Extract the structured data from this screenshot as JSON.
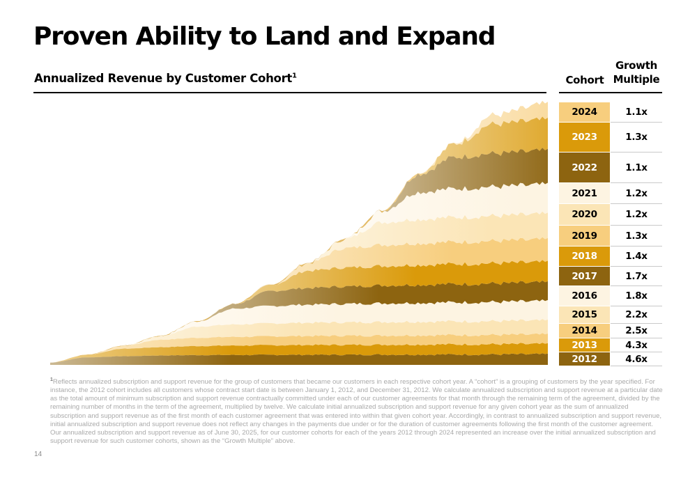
{
  "slide": {
    "title": "Proven Ability to Land and Expand",
    "subtitle": "Annualized Revenue by Customer Cohort",
    "subtitle_footnote_marker": "1",
    "page_number": "14"
  },
  "table": {
    "header_cohort": "Cohort",
    "header_growth_line1": "Growth",
    "header_growth_line2": "Multiple",
    "rows": [
      {
        "cohort": "2024",
        "multiple": "1.1x",
        "color": "#F7CE7E",
        "text": "#000000"
      },
      {
        "cohort": "2023",
        "multiple": "1.3x",
        "color": "#DA9A0A",
        "text": "#ffffff"
      },
      {
        "cohort": "2022",
        "multiple": "1.1x",
        "color": "#8D6410",
        "text": "#ffffff"
      },
      {
        "cohort": "2021",
        "multiple": "1.2x",
        "color": "#FDF4E2",
        "text": "#000000"
      },
      {
        "cohort": "2020",
        "multiple": "1.2x",
        "color": "#FBE5B6",
        "text": "#000000"
      },
      {
        "cohort": "2019",
        "multiple": "1.3x",
        "color": "#F7CE7E",
        "text": "#000000"
      },
      {
        "cohort": "2018",
        "multiple": "1.4x",
        "color": "#DA9A0A",
        "text": "#ffffff"
      },
      {
        "cohort": "2017",
        "multiple": "1.7x",
        "color": "#8D6410",
        "text": "#ffffff"
      },
      {
        "cohort": "2016",
        "multiple": "1.8x",
        "color": "#FDF4E2",
        "text": "#000000"
      },
      {
        "cohort": "2015",
        "multiple": "2.2x",
        "color": "#FBE5B6",
        "text": "#000000"
      },
      {
        "cohort": "2014",
        "multiple": "2.5x",
        "color": "#F7CE7E",
        "text": "#000000"
      },
      {
        "cohort": "2013",
        "multiple": "4.3x",
        "color": "#DA9A0A",
        "text": "#ffffff"
      },
      {
        "cohort": "2012",
        "multiple": "4.6x",
        "color": "#8D6410",
        "text": "#ffffff"
      }
    ]
  },
  "chart_data": {
    "type": "area",
    "stacked": true,
    "title": "Annualized Revenue by Customer Cohort",
    "xlabel": "",
    "ylabel": "",
    "axes_visible": false,
    "grid": false,
    "legend": "table-right",
    "x": [
      2012,
      2013,
      2014,
      2015,
      2016,
      2017,
      2018,
      2019,
      2020,
      2021,
      2022,
      2023,
      2024,
      2025.5
    ],
    "series": [
      {
        "name": "2012",
        "color": "#8D6410",
        "values": [
          0.3,
          1.0,
          1.15,
          1.25,
          1.3,
          1.32,
          1.33,
          1.34,
          1.35,
          1.36,
          1.37,
          1.38,
          1.39,
          1.4
        ]
      },
      {
        "name": "2013",
        "color": "#DA9A0A",
        "values": [
          0,
          0.35,
          1.0,
          1.1,
          1.2,
          1.25,
          1.28,
          1.3,
          1.31,
          1.32,
          1.33,
          1.34,
          1.35,
          1.36
        ]
      },
      {
        "name": "2014",
        "color": "#F7CE7E",
        "values": [
          0,
          0,
          0.4,
          1.0,
          1.1,
          1.15,
          1.18,
          1.2,
          1.21,
          1.22,
          1.23,
          1.24,
          1.24,
          1.25
        ]
      },
      {
        "name": "2015",
        "color": "#FBE5B6",
        "values": [
          0,
          0,
          0,
          0.5,
          1.5,
          1.65,
          1.72,
          1.76,
          1.78,
          1.8,
          1.81,
          1.82,
          1.83,
          1.84
        ]
      },
      {
        "name": "2016",
        "color": "#FDF4E2",
        "values": [
          0,
          0,
          0,
          0,
          0.7,
          2.1,
          2.3,
          2.4,
          2.45,
          2.48,
          2.5,
          2.52,
          2.54,
          2.56
        ]
      },
      {
        "name": "2017",
        "color": "#8D6410",
        "values": [
          0,
          0,
          0,
          0,
          0,
          0.6,
          2.0,
          2.2,
          2.3,
          2.36,
          2.4,
          2.43,
          2.46,
          2.48
        ]
      },
      {
        "name": "2018",
        "color": "#DA9A0A",
        "values": [
          0,
          0,
          0,
          0,
          0,
          0,
          0.8,
          2.3,
          2.5,
          2.58,
          2.62,
          2.66,
          2.68,
          2.7
        ]
      },
      {
        "name": "2019",
        "color": "#F7CE7E",
        "values": [
          0,
          0,
          0,
          0,
          0,
          0,
          0,
          1.0,
          2.6,
          2.8,
          2.88,
          2.92,
          2.96,
          3.0
        ]
      },
      {
        "name": "2020",
        "color": "#FBE5B6",
        "values": [
          0,
          0,
          0,
          0,
          0,
          0,
          0,
          0,
          1.2,
          3.0,
          3.2,
          3.28,
          3.32,
          3.36
        ]
      },
      {
        "name": "2021",
        "color": "#FDF4E2",
        "values": [
          0,
          0,
          0,
          0,
          0,
          0,
          0,
          0,
          0,
          1.5,
          3.6,
          3.8,
          3.88,
          3.92
        ]
      },
      {
        "name": "2022",
        "color": "#8D6410",
        "values": [
          0,
          0,
          0,
          0,
          0,
          0,
          0,
          0,
          0,
          0,
          2.4,
          4.2,
          4.4,
          4.5
        ]
      },
      {
        "name": "2023",
        "color": "#DA9A0A",
        "values": [
          0,
          0,
          0,
          0,
          0,
          0,
          0,
          0,
          0,
          0,
          0,
          1.8,
          3.9,
          4.1
        ]
      },
      {
        "name": "2024",
        "color": "#F7CE7E",
        "values": [
          0,
          0,
          0,
          0,
          0,
          0,
          0,
          0,
          0,
          0,
          0,
          0,
          1.2,
          2.1
        ]
      }
    ]
  },
  "footnote": {
    "marker": "1",
    "text": "Reflects annualized subscription and support revenue for the group of customers that became our customers in each respective cohort year. A “cohort” is a grouping of customers by the year specified. For instance, the 2012 cohort includes all customers whose contract start date is between January 1, 2012, and December 31, 2012. We calculate annualized subscription and support revenue at a particular date as the total amount of minimum subscription and support revenue contractually committed under each of our customer agreements for that month through the remaining term of the agreement, divided by the remaining number of months in the term of the agreement, multiplied by twelve. We calculate initial annualized subscription and support revenue for any given cohort year as the sum of annualized subscription and support revenue as of the first month of each customer agreement that was entered into within that given cohort year. Accordingly, in contrast to annualized subscription and support revenue, initial annualized subscription and support revenue does not reflect any changes in the payments due under or for the duration of customer agreements following the first month of the customer agreement. Our annualized subscription and support revenue as of June 30, 2025, for our customer cohorts for each of the years 2012 through 2024 represented an increase over the initial annualized subscription and support revenue for such customer cohorts, shown as the “Growth Multiple” above."
  }
}
